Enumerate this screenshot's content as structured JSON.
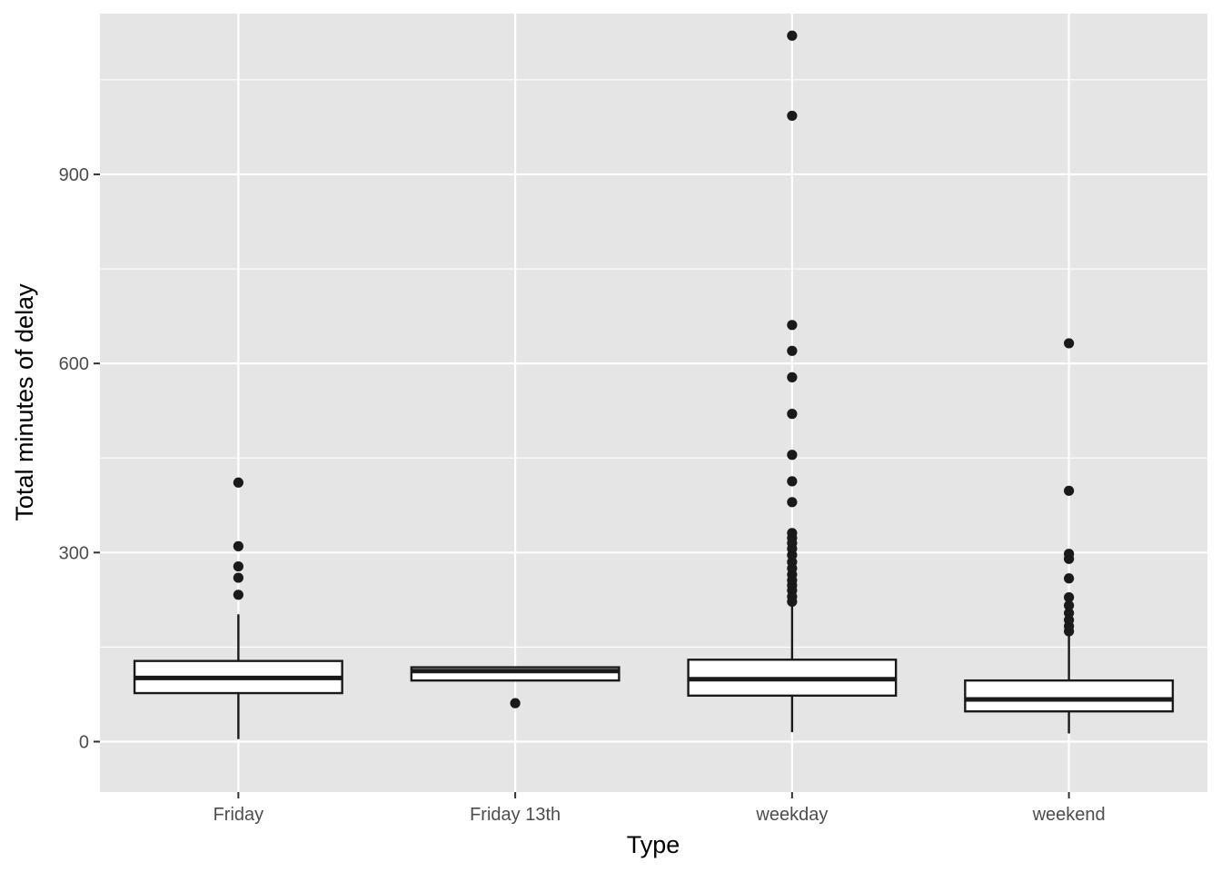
{
  "chart_data": {
    "type": "box",
    "title": "",
    "xlabel": "Type",
    "ylabel": "Total minutes of delay",
    "categories": [
      "Friday",
      "Friday 13th",
      "weekday",
      "weekend"
    ],
    "ylim": [
      -80,
      1155
    ],
    "yticks": [
      0,
      300,
      600,
      900
    ],
    "ytick_labels": [
      "0",
      "300",
      "600",
      "900"
    ],
    "grid": true,
    "legend": "none",
    "colors": {
      "panel_background": "#e5e5e5",
      "grid": "#ffffff",
      "box_fill": "#ffffff",
      "box_stroke": "#1a1a1a",
      "outlier": "#1a1a1a"
    },
    "boxes": [
      {
        "category": "Friday",
        "whisker_low": 4,
        "q1": 77,
        "median": 101,
        "q3": 128,
        "whisker_high": 202,
        "outliers": [
          233,
          260,
          278,
          310,
          411
        ]
      },
      {
        "category": "Friday 13th",
        "whisker_low": 97,
        "q1": 97,
        "median": 112,
        "q3": 118,
        "whisker_high": 118,
        "outliers": [
          61
        ]
      },
      {
        "category": "weekday",
        "whisker_low": 15,
        "q1": 73,
        "median": 99,
        "q3": 130,
        "whisker_high": 218,
        "outliers": [
          222,
          230,
          240,
          248,
          256,
          265,
          275,
          285,
          296,
          306,
          315,
          323,
          331,
          380,
          413,
          455,
          520,
          578,
          620,
          661,
          993,
          1120
        ]
      },
      {
        "category": "weekend",
        "whisker_low": 13,
        "q1": 48,
        "median": 67,
        "q3": 97,
        "whisker_high": 168,
        "outliers": [
          175,
          183,
          193,
          204,
          216,
          229,
          259,
          290,
          298,
          398,
          632
        ]
      }
    ]
  }
}
